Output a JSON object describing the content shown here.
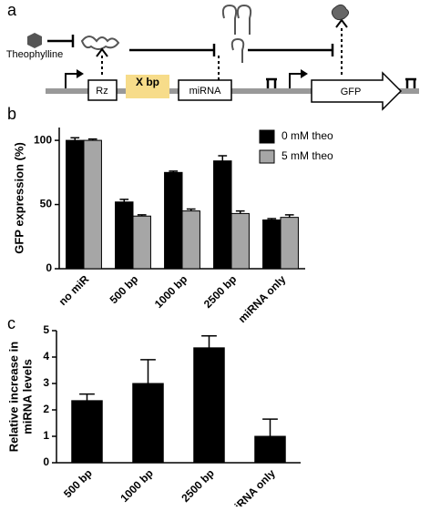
{
  "panels": [
    "a",
    "b",
    "c"
  ],
  "diagram": {
    "inducer": "Theophylline",
    "ribozyme": "Rz",
    "spacer": "X bp",
    "mirna": "miRNA",
    "reporter": "GFP"
  },
  "chart_data": [
    {
      "type": "bar",
      "ylabel": "GFP expression (%)",
      "categories": [
        "no miR",
        "500 bp",
        "1000 bp",
        "2500 bp",
        "miRNA only"
      ],
      "series": [
        {
          "name": "0 mM theo",
          "color": "#000000",
          "values": [
            100,
            52,
            75,
            84,
            38
          ],
          "errors": [
            2,
            2,
            1,
            4,
            1
          ]
        },
        {
          "name": "5 mM theo",
          "color": "#a6a6a6",
          "values": [
            100,
            41,
            45,
            43,
            40
          ],
          "errors": [
            1,
            1,
            1.5,
            2,
            2
          ]
        }
      ],
      "ylim": [
        0,
        110
      ],
      "yticks": [
        0,
        50,
        100
      ]
    },
    {
      "type": "bar",
      "ylabel": [
        "Relative increase in",
        "miRNA levels"
      ],
      "categories": [
        "500 bp",
        "1000 bp",
        "2500 bp",
        "miRNA only"
      ],
      "color": "#000000",
      "values": [
        2.35,
        3.0,
        4.35,
        1.0
      ],
      "errors": [
        0.25,
        0.9,
        0.45,
        0.65
      ],
      "ylim": [
        0,
        5
      ],
      "yticks": [
        0,
        1,
        2,
        3,
        4,
        5
      ]
    }
  ]
}
